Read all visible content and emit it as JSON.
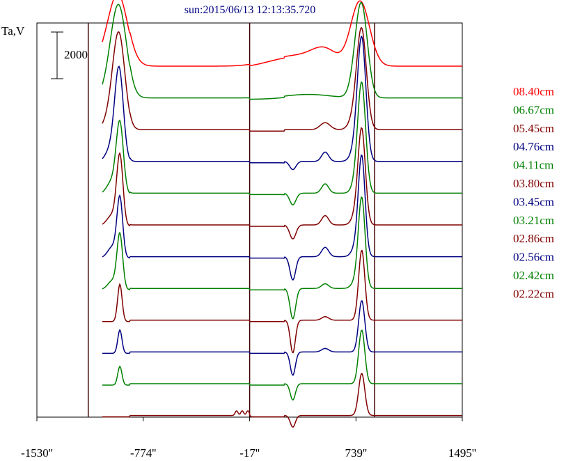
{
  "chart_data": {
    "type": "line",
    "title": "sun:2015/06/13 12:13:35.720",
    "ylabel": "Ta,V",
    "scale_bar_label": "2000",
    "scale_bar_value": 2000,
    "xlim": [
      -1530,
      1495
    ],
    "x_ticks": [
      {
        "value": -1530,
        "label": "-1530''"
      },
      {
        "value": -774,
        "label": "-774''"
      },
      {
        "value": -17,
        "label": "-17''"
      },
      {
        "value": 739,
        "label": "739''"
      },
      {
        "value": 1495,
        "label": "1495''"
      }
    ],
    "vertical_markers": [
      -1165,
      -17,
      872
    ],
    "series": [
      {
        "name": "08.40cm",
        "color": "#ff0000",
        "peaks": [
          [
            -971,
            2100,
            78
          ],
          [
            -940,
            1200,
            60
          ],
          [
            242,
            350,
            150
          ],
          [
            520,
            600,
            90
          ],
          [
            420,
            200,
            120
          ],
          [
            780,
            2100,
            65
          ],
          [
            740,
            800,
            60
          ]
        ]
      },
      {
        "name": "06.67cm",
        "color": "#008000",
        "peaks": [
          [
            -945,
            3500,
            55
          ],
          [
            -990,
            800,
            60
          ],
          [
            780,
            3700,
            42
          ],
          [
            740,
            600,
            40
          ],
          [
            400,
            150,
            150
          ]
        ]
      },
      {
        "name": "05.45cm",
        "color": "#800000",
        "peaks": [
          [
            -945,
            3700,
            42
          ],
          [
            -990,
            800,
            50
          ],
          [
            780,
            4000,
            34
          ],
          [
            740,
            600,
            40
          ],
          [
            520,
            300,
            35
          ]
        ]
      },
      {
        "name": "04.76cm",
        "color": "#000080",
        "peaks": [
          [
            -945,
            3700,
            30
          ],
          [
            -990,
            700,
            45
          ],
          [
            780,
            5100,
            30
          ],
          [
            740,
            500,
            35
          ],
          [
            520,
            400,
            25
          ],
          [
            290,
            -350,
            22
          ]
        ]
      },
      {
        "name": "04.11cm",
        "color": "#008000",
        "peaks": [
          [
            -940,
            2900,
            25
          ],
          [
            -990,
            600,
            40
          ],
          [
            780,
            4600,
            28
          ],
          [
            740,
            400,
            30
          ],
          [
            520,
            400,
            25
          ],
          [
            290,
            -500,
            22
          ]
        ]
      },
      {
        "name": "03.80cm",
        "color": "#800000",
        "peaks": [
          [
            -940,
            2900,
            22
          ],
          [
            -990,
            500,
            40
          ],
          [
            780,
            4000,
            26
          ],
          [
            740,
            400,
            30
          ],
          [
            520,
            400,
            25
          ],
          [
            290,
            -600,
            22
          ]
        ]
      },
      {
        "name": "03.45cm",
        "color": "#000080",
        "peaks": [
          [
            -940,
            2500,
            20
          ],
          [
            -990,
            500,
            35
          ],
          [
            780,
            4200,
            24
          ],
          [
            740,
            400,
            30
          ],
          [
            520,
            400,
            25
          ],
          [
            290,
            -1000,
            20
          ]
        ]
      },
      {
        "name": "03.21cm",
        "color": "#008000",
        "peaks": [
          [
            -940,
            2300,
            20
          ],
          [
            -990,
            400,
            35
          ],
          [
            780,
            3800,
            24
          ],
          [
            740,
            300,
            30
          ],
          [
            520,
            200,
            25
          ],
          [
            290,
            -1300,
            20
          ]
        ]
      },
      {
        "name": "02.86cm",
        "color": "#800000",
        "peaks": [
          [
            -940,
            1600,
            16
          ],
          [
            780,
            3000,
            22
          ],
          [
            520,
            150,
            25
          ],
          [
            290,
            -1400,
            18
          ]
        ]
      },
      {
        "name": "02.56cm",
        "color": "#000080",
        "peaks": [
          [
            -940,
            1000,
            15
          ],
          [
            780,
            2200,
            22
          ],
          [
            520,
            150,
            25
          ],
          [
            290,
            -1000,
            18
          ]
        ]
      },
      {
        "name": "02.42cm",
        "color": "#008000",
        "peaks": [
          [
            -940,
            800,
            15
          ],
          [
            780,
            2300,
            22
          ],
          [
            290,
            -700,
            18
          ]
        ]
      },
      {
        "name": "02.22cm",
        "color": "#800000",
        "peaks": [
          [
            780,
            1800,
            22
          ],
          [
            290,
            -500,
            18
          ],
          [
            -110,
            200,
            10
          ],
          [
            -70,
            200,
            10
          ],
          [
            -30,
            200,
            10
          ]
        ]
      }
    ]
  }
}
